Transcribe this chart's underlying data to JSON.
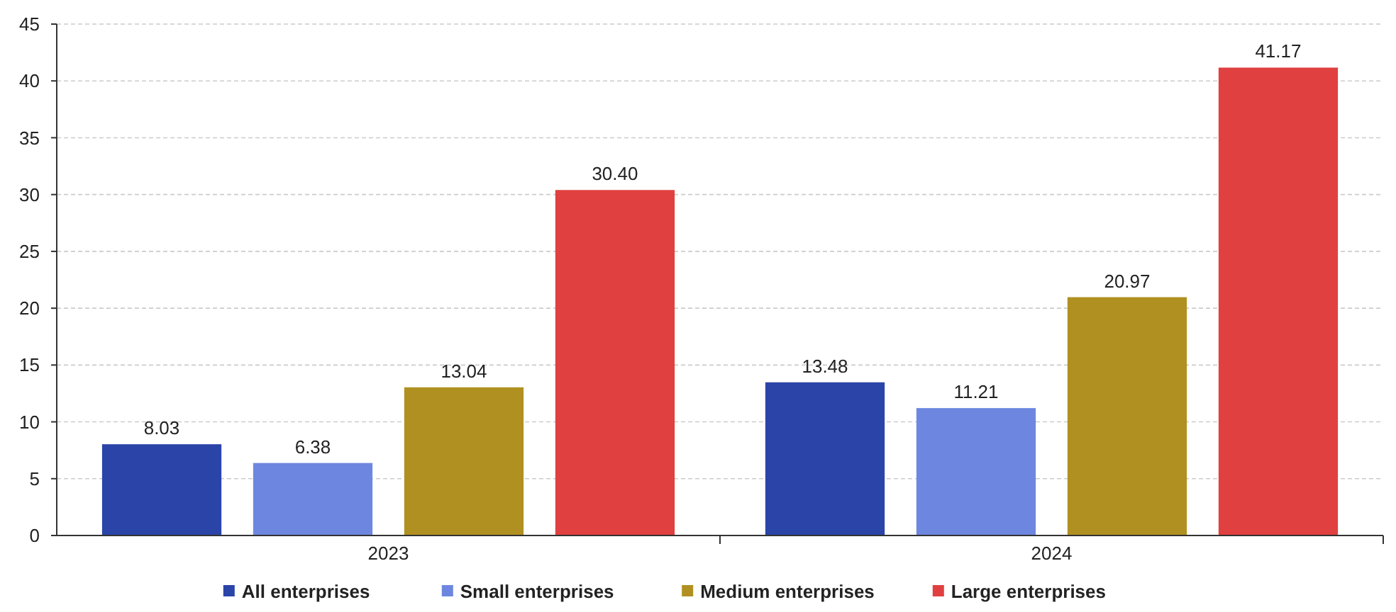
{
  "chart_data": {
    "type": "bar",
    "categories": [
      "2023",
      "2024"
    ],
    "series": [
      {
        "name": "All enterprises",
        "color": "#2a44a8",
        "values": [
          8.03,
          13.48
        ],
        "value_labels": [
          "8.03",
          "13.48"
        ]
      },
      {
        "name": "Small enterprises",
        "color": "#6d87e0",
        "values": [
          6.38,
          11.21
        ],
        "value_labels": [
          "6.38",
          "11.21"
        ]
      },
      {
        "name": "Medium enterprises",
        "color": "#b09020",
        "values": [
          13.04,
          20.97
        ],
        "value_labels": [
          "13.04",
          "20.97"
        ]
      },
      {
        "name": "Large enterprises",
        "color": "#e04040",
        "values": [
          30.4,
          41.17
        ],
        "value_labels": [
          "30.40",
          "41.17"
        ]
      }
    ],
    "ylim": [
      0,
      45
    ],
    "yticks": [
      0,
      5,
      10,
      15,
      20,
      25,
      30,
      35,
      40,
      45
    ],
    "grid": "y",
    "legend": "bottom"
  }
}
